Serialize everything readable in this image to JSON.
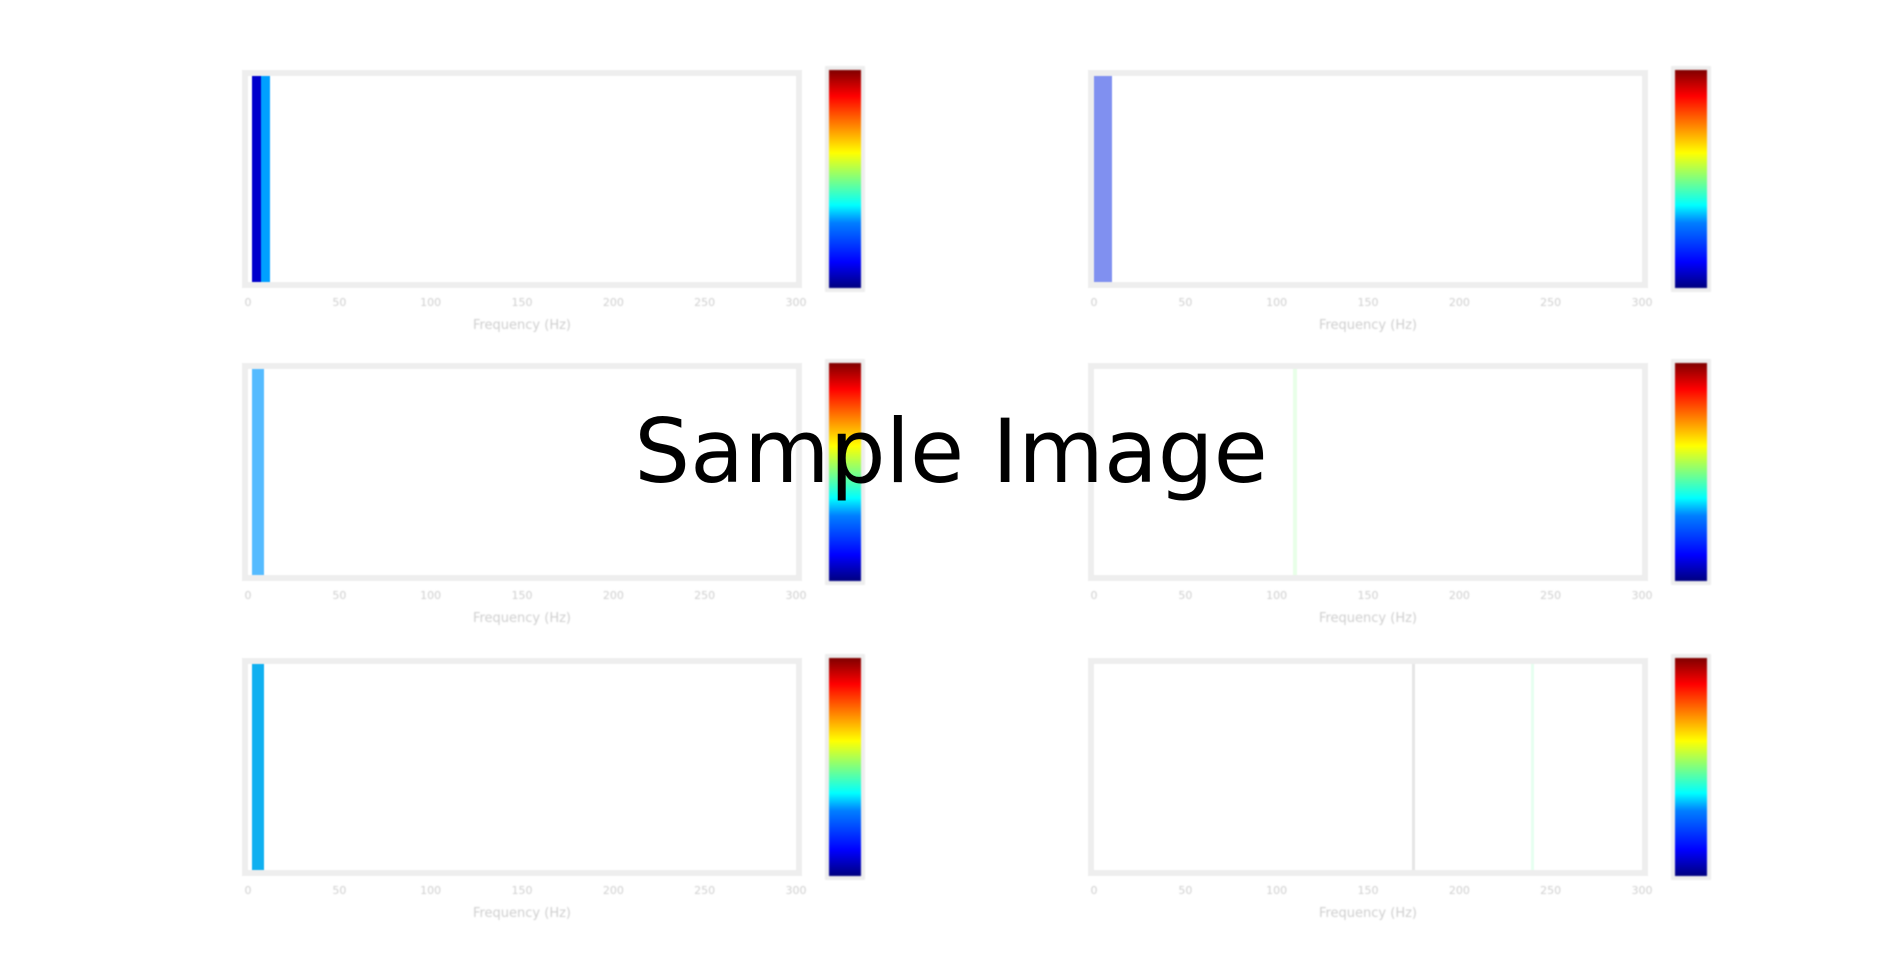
{
  "watermark": "Sample Image",
  "chart_data": [
    {
      "type": "heatmap",
      "title": "",
      "xlabel": "Frequency (Hz)",
      "x_ticks": [
        "0",
        "50",
        "100",
        "150",
        "200",
        "250",
        "300"
      ],
      "xlim": [
        0,
        300
      ],
      "bands": [
        {
          "x0": 2,
          "x1": 7,
          "color": "#0000cc"
        },
        {
          "x0": 7,
          "x1": 12,
          "color": "#00a0ff"
        }
      ],
      "colorbar": {
        "colormap": "jet",
        "tick_labels": [
          "",
          "",
          ""
        ]
      }
    },
    {
      "type": "heatmap",
      "title": "",
      "xlabel": "Frequency (Hz)",
      "x_ticks": [
        "0",
        "50",
        "100",
        "150",
        "200",
        "250",
        "300"
      ],
      "xlim": [
        0,
        300
      ],
      "bands": [
        {
          "x0": 0,
          "x1": 10,
          "color": "#8090f0"
        }
      ],
      "colorbar": {
        "colormap": "jet",
        "tick_labels": [
          "",
          "",
          "",
          "",
          ""
        ]
      }
    },
    {
      "type": "heatmap",
      "title": "",
      "xlabel": "Frequency (Hz)",
      "x_ticks": [
        "0",
        "50",
        "100",
        "150",
        "200",
        "250",
        "300"
      ],
      "xlim": [
        0,
        300
      ],
      "bands": [
        {
          "x0": 2,
          "x1": 9,
          "color": "#55bbff"
        }
      ],
      "colorbar": {
        "colormap": "jet",
        "tick_labels": [
          "",
          ""
        ]
      }
    },
    {
      "type": "heatmap",
      "title": "",
      "xlabel": "Frequency (Hz)",
      "x_ticks": [
        "0",
        "50",
        "100",
        "150",
        "200",
        "250",
        "300"
      ],
      "xlim": [
        0,
        300
      ],
      "bands": [
        {
          "x0": 109,
          "x1": 111,
          "color": "#e8ffe8"
        }
      ],
      "colorbar": {
        "colormap": "jet",
        "tick_labels": [
          "",
          "",
          ""
        ]
      }
    },
    {
      "type": "heatmap",
      "title": "",
      "xlabel": "Frequency (Hz)",
      "x_ticks": [
        "0",
        "50",
        "100",
        "150",
        "200",
        "250",
        "300"
      ],
      "xlim": [
        0,
        300
      ],
      "bands": [
        {
          "x0": 2,
          "x1": 9,
          "color": "#10b0f0"
        }
      ],
      "colorbar": {
        "colormap": "jet",
        "tick_labels": [
          "",
          "",
          ""
        ]
      }
    },
    {
      "type": "heatmap",
      "title": "",
      "xlabel": "Frequency (Hz)",
      "x_ticks": [
        "0",
        "50",
        "100",
        "150",
        "200",
        "250",
        "300"
      ],
      "xlim": [
        0,
        300
      ],
      "bands": [
        {
          "x0": 174,
          "x1": 176,
          "color": "#e6e6e6"
        },
        {
          "x0": 239,
          "x1": 241,
          "color": "#e6fff0"
        }
      ],
      "colorbar": {
        "colormap": "jet",
        "tick_labels": [
          "",
          "",
          ""
        ]
      }
    }
  ]
}
